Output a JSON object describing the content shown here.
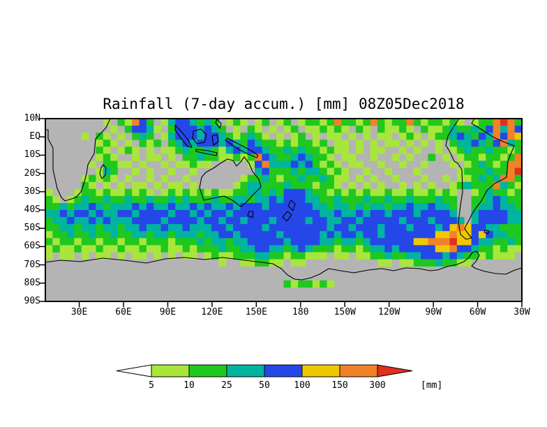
{
  "chart_data": {
    "type": "heatmap",
    "title": "Rainfall (7-day accum.) [mm] 08Z05Dec2018",
    "x_ticks": [
      "30E",
      "60E",
      "90E",
      "120E",
      "150E",
      "180",
      "150W",
      "120W",
      "90W",
      "60W",
      "30W"
    ],
    "y_ticks": [
      "10N",
      "EQ",
      "10S",
      "20S",
      "30S",
      "40S",
      "50S",
      "60S",
      "70S",
      "80S",
      "90S"
    ],
    "plot_background": "#b4b4b4",
    "legend_position": "bottom",
    "colorbar": {
      "levels": [
        5,
        10,
        25,
        50,
        100,
        150,
        300
      ],
      "unit_label": "[mm]",
      "below_color": "#ffffff",
      "segment_colors": [
        "#a8e63c",
        "#1fc81f",
        "#00b4a0",
        "#2547e8",
        "#f0c800",
        "#f08228"
      ],
      "above_color": "#e0301e"
    },
    "grid": {
      "cols": 66,
      "rows": 26,
      "lat_range": [
        "10N",
        "90S"
      ],
      "cell_legend": {
        ".": "<5",
        "1": "5-10",
        "2": "10-25",
        "3": "25-50",
        "4": "50-100",
        "5": "100-150",
        "6": "150-300",
        "7": ">300"
      },
      "cells": [
        [
          "........1.2",
          "1642.134432",
          "32.121.12.1",
          "2.122126221",
          "26212262122",
          "121.1226762"
        ],
        [
          ".........1.",
          "24431.24443",
          "432.1.21.1.",
          "12.112121.2",
          "1.21121.211",
          "23223246364"
        ],
        [
          ".....1.21.1",
          ".232.134443",
          "443212321.1",
          ".12.1.11.1.",
          "1.11.121.12",
          "23432436465"
        ],
        [
          ".......121.",
          "1.212.23434",
          "44343243221",
          "212212.11.1",
          ".1.11.1.1.1",
          ".2334324632"
        ],
        [
          ".......21.1",
          "21.1.112322",
          "32134344322",
          "323221211.1",
          ".11..1.1..1",
          ".1232232212"
        ],
        [
          ".......121.",
          ".1.11.1.223",
          "22112126432",
          "2343221.11.",
          ".1..1.1..2.",
          "1.122122126"
        ],
        [
          "......1.221",
          "1.1..1.1121",
          "1.....14633",
          "34342121.11",
          "..1..1..1..",
          ".1.12321266"
        ],
        [
          ".......132.",
          ".1.1..1..1.",
          ".......3422",
          "232332121..",
          "1..1...1...",
          "..122232267"
        ],
        [
          ".....12121.",
          "1..1.1..1..",
          ".....122321",
          "223223211.1",
          ".1..1...1..",
          "1.112323662"
        ],
        [
          ".....21.1.1",
          ".11.1.11.1.",
          "....1233222",
          "32221221.1.",
          "1.1..1.1.1.",
          ".1232226321"
        ],
        [
          "1...1221211",
          "2121.121212",
          "12112233232",
          "44432212121",
          "21121121121",
          "21..1232212"
        ],
        [
          "21.12322322",
          "32232232322",
          "23223323343",
          "44433223222",
          "32232232223",
          "22..2234322"
        ],
        [
          "22323343233",
          "34343343343",
          "43343444344",
          "44443323323",
          "23323343343",
          "32..2334332"
        ],
        [
          "33434434334",
          "43444434434",
          "34434444444",
          "44444334334",
          "34434443444",
          "43..3444433"
        ],
        [
          "23343343433",
          "34444344443",
          "44344344434",
          "44434433443",
          "44444344434",
          "443.3444433"
        ],
        [
          "22332332332",
          "33433433433",
          "34434444344",
          "44444434434",
          "44344434443",
          "45654433222"
        ],
        [
          "12232232232",
          "23323323332",
          "33443444443",
          "44444343443",
          "44344444445",
          "56554543322"
        ],
        [
          "21221221221",
          "22122212223",
          "23323344444",
          "34444332332",
          "34444445566",
          "67554332232"
        ],
        [
          "12112112112",
          "11211211212",
          "22322334433",
          "23432221221",
          "23343444445",
          "56443221211"
        ],
        [
          "1.11.1.11.1",
          ".11.1.1.11.",
          "12112223322",
          "122111.11.1",
          "12232233444",
          "3432212111."
        ],
        [
          "...........",
          "...........",
          "..1..112211",
          ".11........",
          "..11.112223",
          "2211......."
        ],
        [
          "...........",
          "...........",
          "...........",
          "...........",
          "...........",
          "..........."
        ],
        [
          "...........",
          "...........",
          "...........",
          "...........",
          "...........",
          "..........."
        ],
        [
          "...........",
          "...........",
          "...........",
          "2122121....",
          "...........",
          "..........."
        ],
        [
          "...........",
          "...........",
          "...........",
          "...........",
          "...........",
          "..........."
        ],
        [
          "...........",
          "...........",
          "...........",
          "...........",
          "...........",
          "..........."
        ]
      ]
    }
  }
}
